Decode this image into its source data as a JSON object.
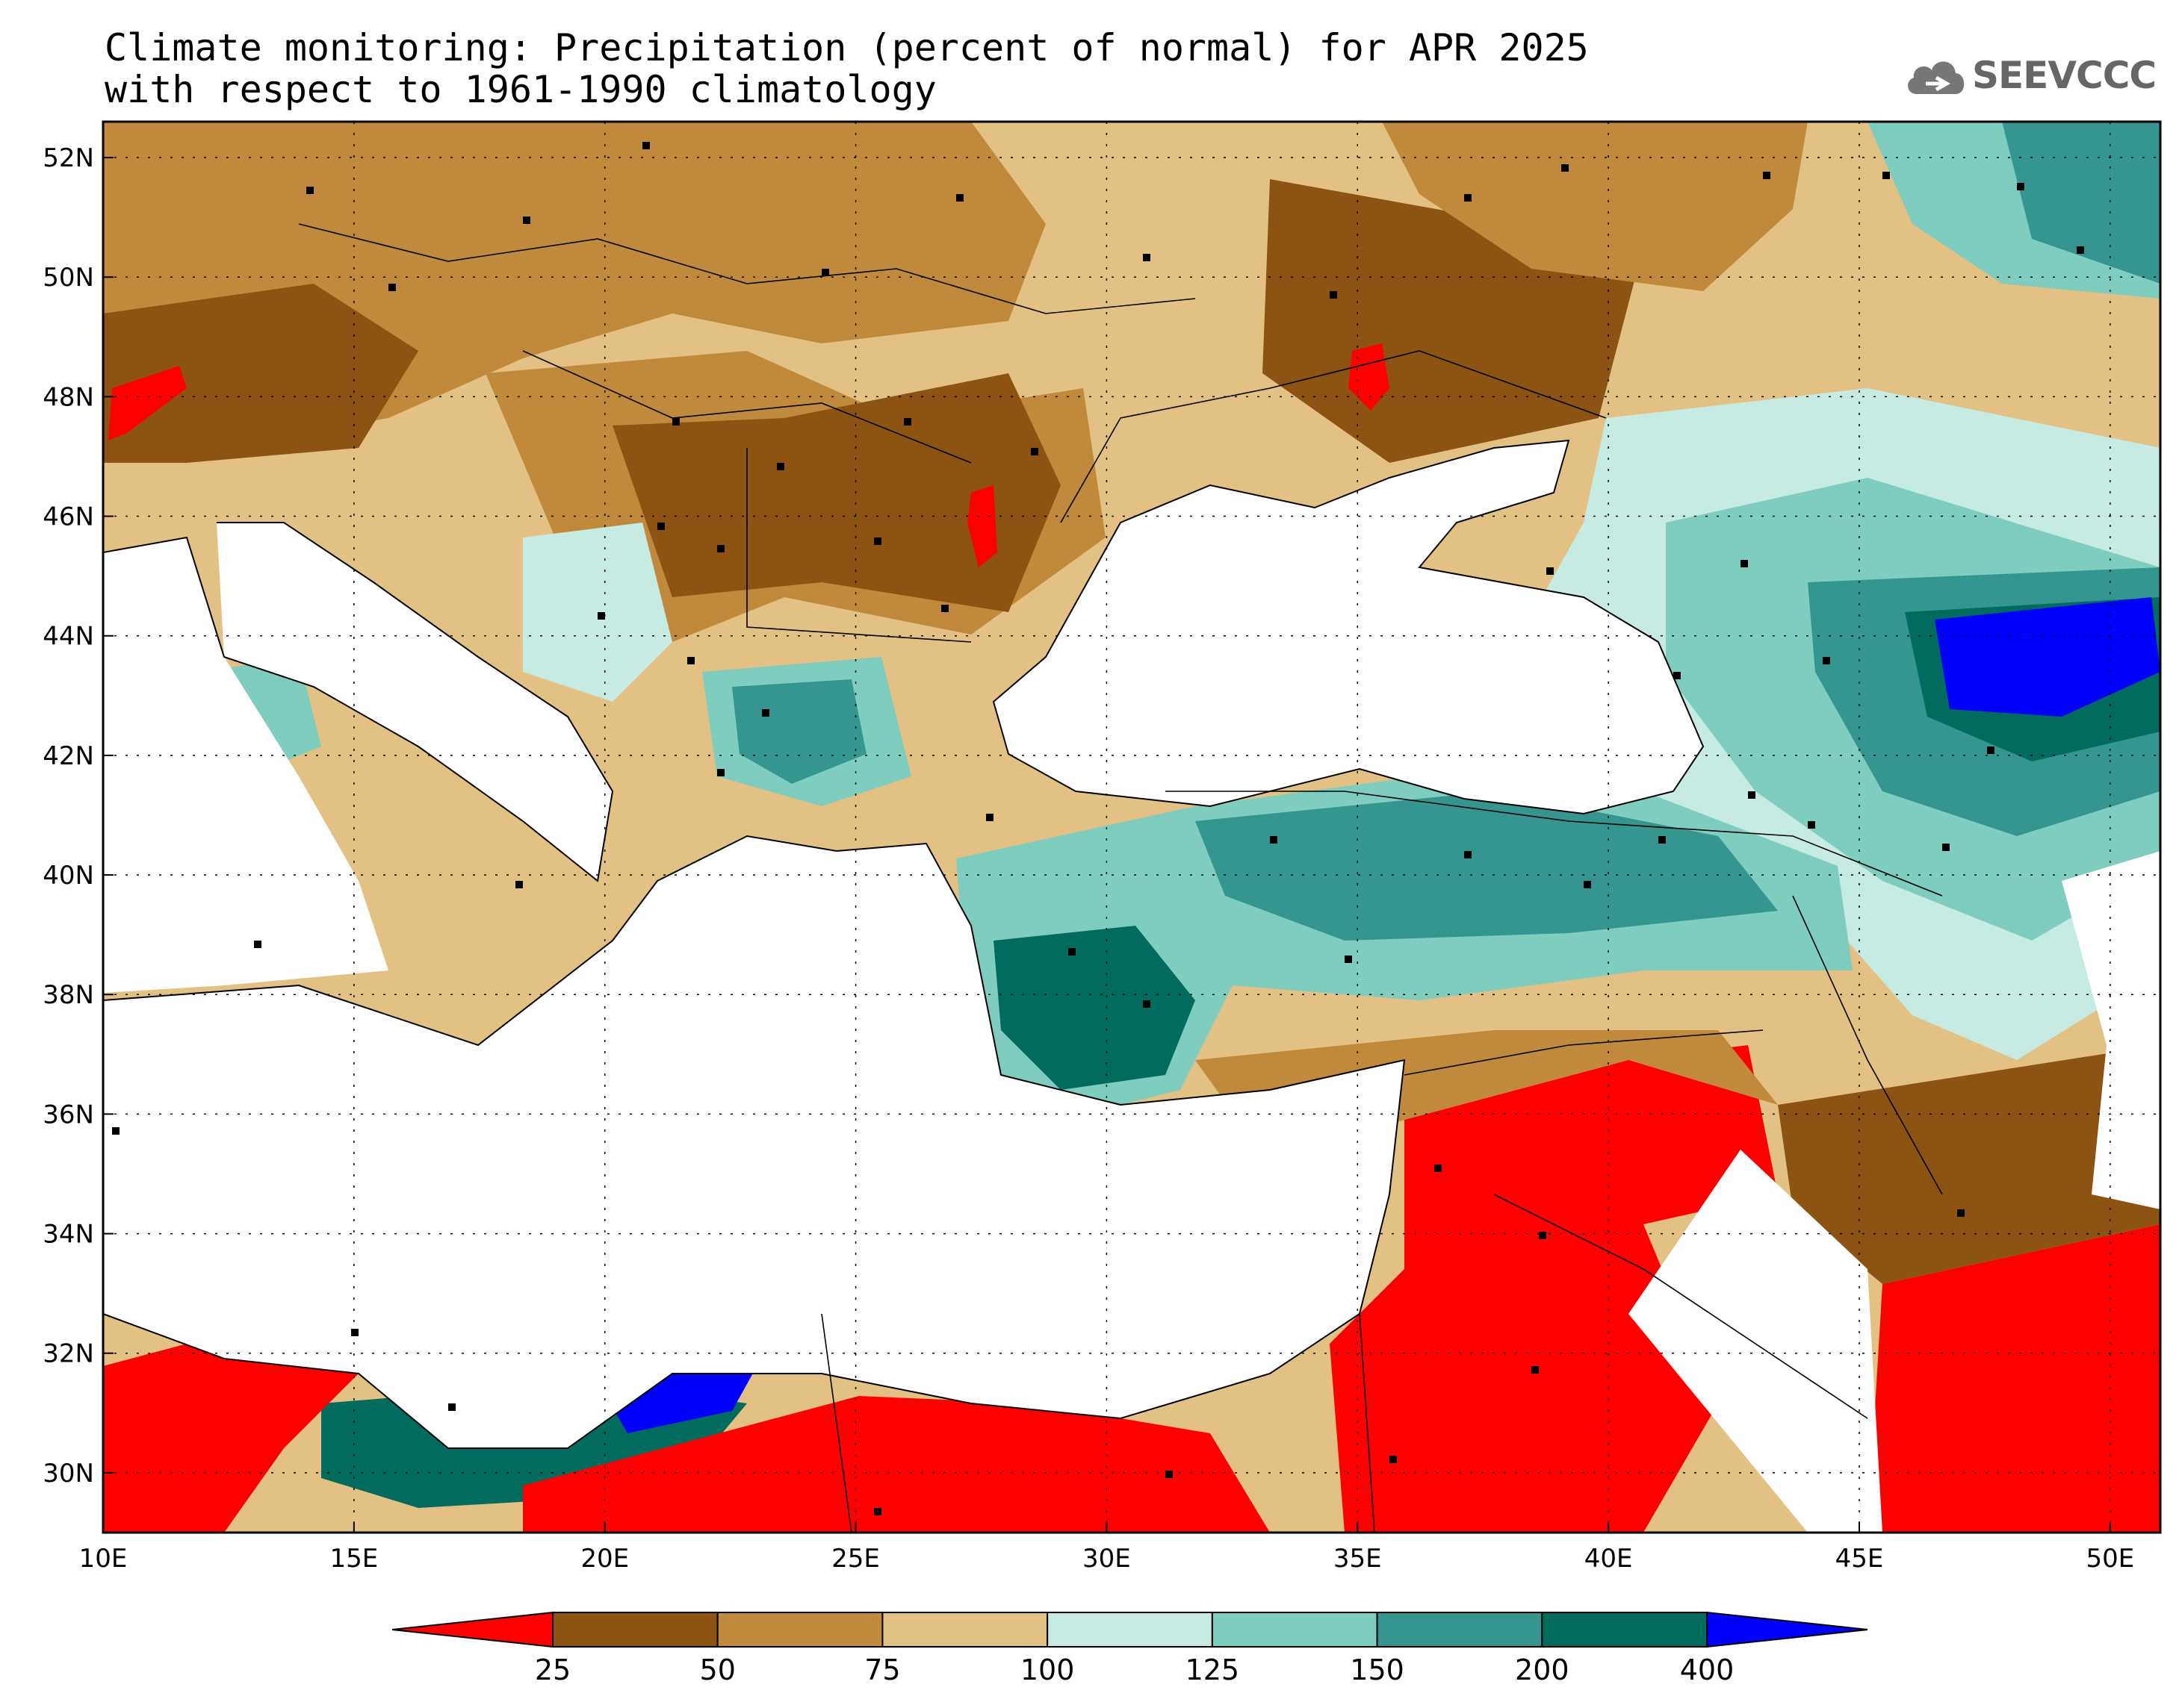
{
  "title": {
    "line1": "Climate monitoring: Precipitation (percent of normal) for APR 2025",
    "line2": "with respect to 1961-1990 climatology"
  },
  "logo": {
    "text": "SEEVCCC",
    "icon": "cloud-icon"
  },
  "map": {
    "lon_range": [
      10,
      51
    ],
    "lat_range": [
      29,
      52.6
    ],
    "lon_ticks": [
      "10E",
      "15E",
      "20E",
      "25E",
      "30E",
      "35E",
      "40E",
      "45E",
      "50E"
    ],
    "lat_ticks": [
      "52N",
      "50N",
      "48N",
      "46N",
      "44N",
      "42N",
      "40N",
      "38N",
      "36N",
      "34N",
      "32N",
      "30N"
    ],
    "grid": true
  },
  "colorbar": {
    "colors": [
      "#ff0000",
      "#8c5312",
      "#c1893c",
      "#e3c184",
      "#c6ebe3",
      "#7fcdbf",
      "#359690",
      "#016b5e",
      "#0000ff"
    ],
    "labels": [
      "25",
      "50",
      "75",
      "100",
      "125",
      "150",
      "200",
      "400"
    ]
  }
}
